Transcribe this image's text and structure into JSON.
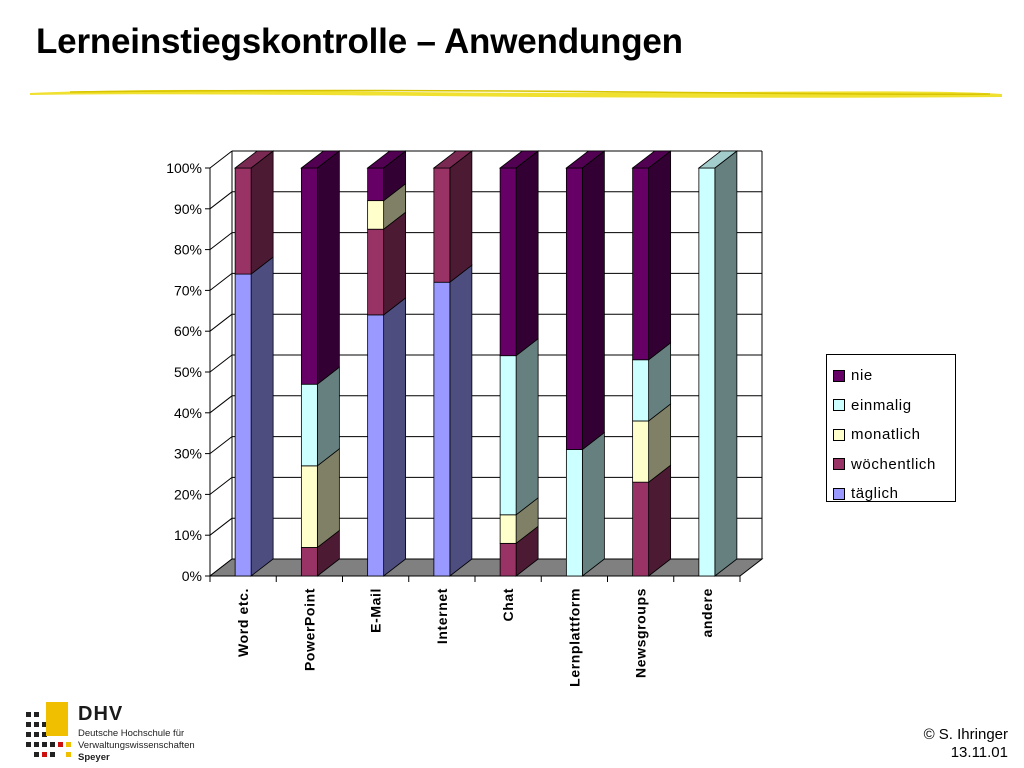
{
  "slide": {
    "title": "Lerneinstiegskontrolle – Anwendungen",
    "author": "© S. Ihringer",
    "date": "13.11.01"
  },
  "logo": {
    "name": "DHV",
    "line1": "Deutsche Hochschule für",
    "line2": "Verwaltungswissenschaften",
    "place": "Speyer"
  },
  "colors": {
    "täglich": "#9999ff",
    "wöchentlich": "#993366",
    "monatlich": "#ffffcc",
    "einmalig": "#ccffff",
    "nie": "#660066"
  },
  "chart_data": {
    "type": "bar",
    "stacked": true,
    "three_d": true,
    "categories": [
      "Word etc.",
      "PowerPoint",
      "E-Mail",
      "Internet",
      "Chat",
      "Lernplattform",
      "Newsgroups",
      "andere"
    ],
    "series": [
      {
        "name": "täglich",
        "values": [
          74,
          0,
          64,
          72,
          0,
          0,
          0,
          0
        ]
      },
      {
        "name": "wöchentlich",
        "values": [
          26,
          7,
          21,
          28,
          8,
          0,
          23,
          0
        ]
      },
      {
        "name": "monatlich",
        "values": [
          0,
          20,
          7,
          0,
          7,
          0,
          15,
          0
        ]
      },
      {
        "name": "einmalig",
        "values": [
          0,
          20,
          0,
          0,
          39,
          31,
          15,
          100
        ]
      },
      {
        "name": "nie",
        "values": [
          0,
          53,
          8,
          0,
          46,
          69,
          47,
          0
        ]
      }
    ],
    "ylim": [
      0,
      100
    ],
    "yticks": [
      "0%",
      "10%",
      "20%",
      "30%",
      "40%",
      "50%",
      "60%",
      "70%",
      "80%",
      "90%",
      "100%"
    ],
    "legend_position": "right",
    "grid": true
  }
}
